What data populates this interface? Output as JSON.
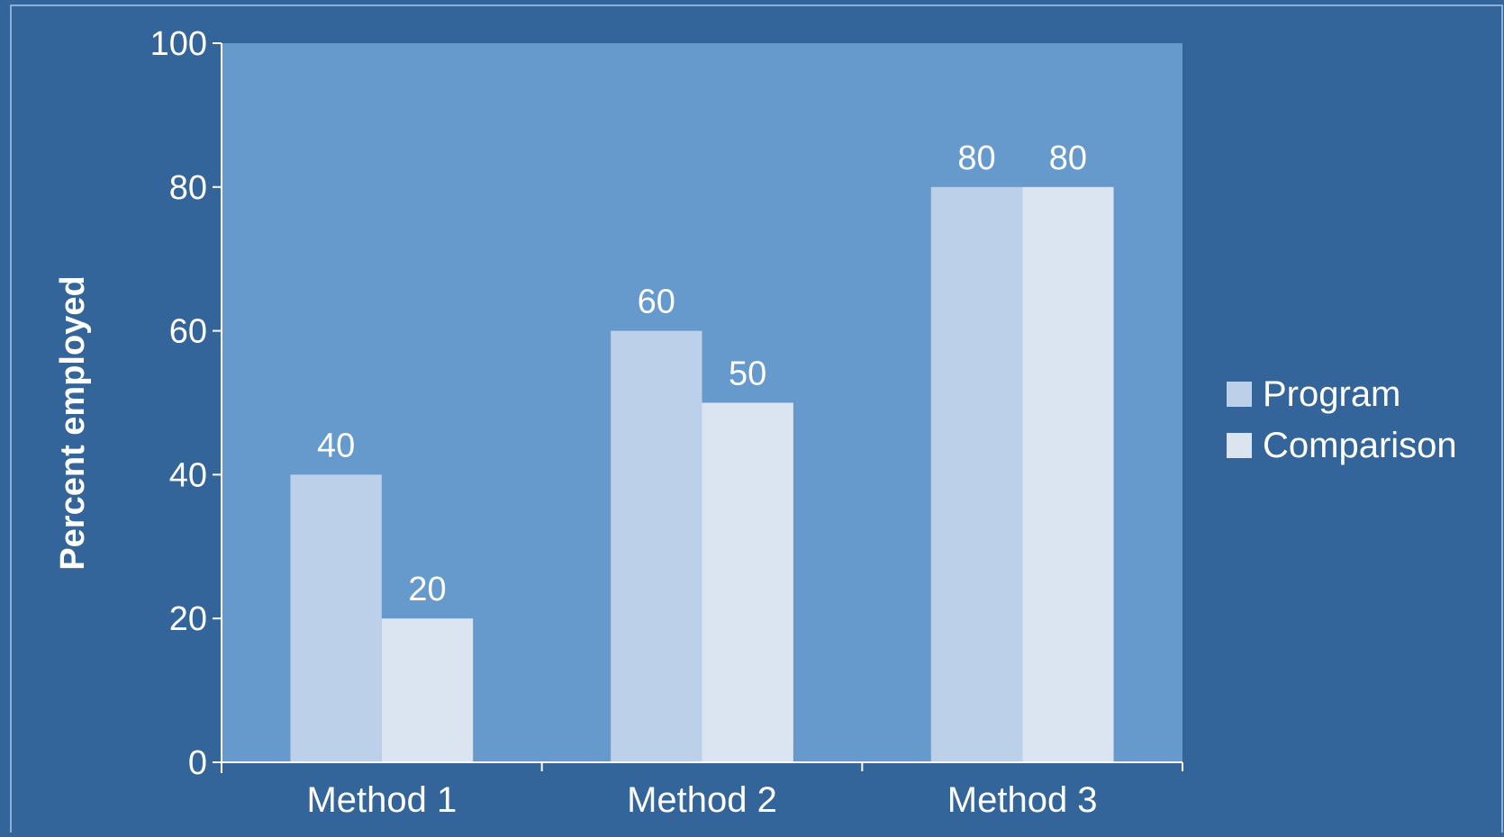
{
  "chart_data": {
    "type": "bar",
    "title": "",
    "xlabel": "",
    "ylabel": "Percent employed",
    "ylim": [
      0,
      100
    ],
    "yticks": [
      0,
      20,
      40,
      60,
      80,
      100
    ],
    "categories": [
      "Method 1",
      "Method 2",
      "Method 3"
    ],
    "series": [
      {
        "name": "Program",
        "values": [
          40,
          60,
          80
        ],
        "color": "#bdd0e9"
      },
      {
        "name": "Comparison",
        "values": [
          20,
          50,
          80
        ],
        "color": "#dbe5f1"
      }
    ],
    "data_labels": true,
    "grid": false,
    "legend": "right",
    "colors": {
      "background": "#33649a",
      "plot_area": "#6699cc",
      "axis": "#ffffff",
      "text": "#ffffff"
    }
  }
}
